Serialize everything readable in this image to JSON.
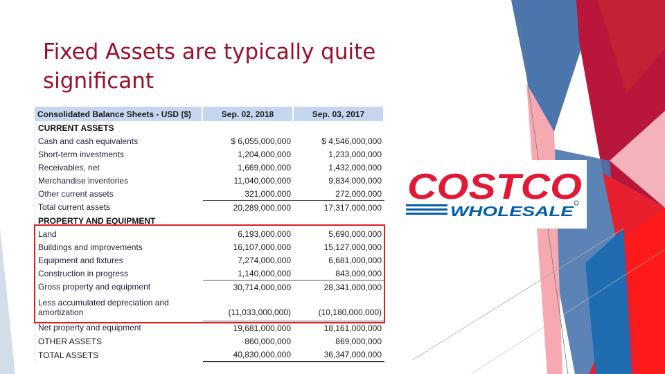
{
  "slide": {
    "title": "Fixed Assets are typically quite significant"
  },
  "balance_sheet": {
    "headers": [
      "Consolidated Balance Sheets - USD ($)",
      "Sep. 02, 2018",
      "Sep. 03, 2017"
    ],
    "rows": [
      {
        "label": "CURRENT ASSETS",
        "v1": "",
        "v2": "",
        "kind": "section"
      },
      {
        "label": "Cash and cash equivalents",
        "v1": "$ 6,055,000,000",
        "v2": "$ 4,546,000,000",
        "kind": "line"
      },
      {
        "label": "Short-term investments",
        "v1": "1,204,000,000",
        "v2": "1,233,000,000",
        "kind": "line"
      },
      {
        "label": "Receivables, net",
        "v1": "1,669,000,000",
        "v2": "1,432,000,000",
        "kind": "line"
      },
      {
        "label": "Merchandise inventories",
        "v1": "11,040,000,000",
        "v2": "9,834,000,000",
        "kind": "line"
      },
      {
        "label": "Other current assets",
        "v1": "321,000,000",
        "v2": "272,000,000",
        "kind": "line"
      },
      {
        "label": "Total current assets",
        "v1": "20,289,000,000",
        "v2": "17,317,000,000",
        "kind": "total"
      },
      {
        "label": "PROPERTY AND EQUIPMENT",
        "v1": "",
        "v2": "",
        "kind": "section"
      },
      {
        "label": "Land",
        "v1": "6,193,000,000",
        "v2": "5,690,000,000",
        "kind": "line"
      },
      {
        "label": "Buildings and improvements",
        "v1": "16,107,000,000",
        "v2": "15,127,000,000",
        "kind": "line"
      },
      {
        "label": "Equipment and fixtures",
        "v1": "7,274,000,000",
        "v2": "6,681,000,000",
        "kind": "line"
      },
      {
        "label": "Construction in progress",
        "v1": "1,140,000,000",
        "v2": "843,000,000",
        "kind": "line"
      },
      {
        "label": "Gross property and equipment",
        "v1": "30,714,000,000",
        "v2": "28,341,000,000",
        "kind": "total"
      },
      {
        "label": "Less accumulated depreciation and amortization",
        "v1": "(11,033,000,000)",
        "v2": "(10,180,000,000)",
        "kind": "tall"
      },
      {
        "label": "Net property and equipment",
        "v1": "19,681,000,000",
        "v2": "18,161,000,000",
        "kind": "total"
      },
      {
        "label": "OTHER ASSETS",
        "v1": "860,000,000",
        "v2": "869,000,000",
        "kind": "line"
      },
      {
        "label": "TOTAL ASSETS",
        "v1": "40,830,000,000",
        "v2": "36,347,000,000",
        "kind": "grand"
      }
    ]
  },
  "logo": {
    "brand": "COSTCO",
    "tagline": "WHOLESALE",
    "brand_color": "#e31837",
    "tagline_color": "#005daa"
  },
  "colors": {
    "title": "#9b0f2c",
    "highlight": "#d9201f",
    "header_fill": "#c5d7ee"
  }
}
